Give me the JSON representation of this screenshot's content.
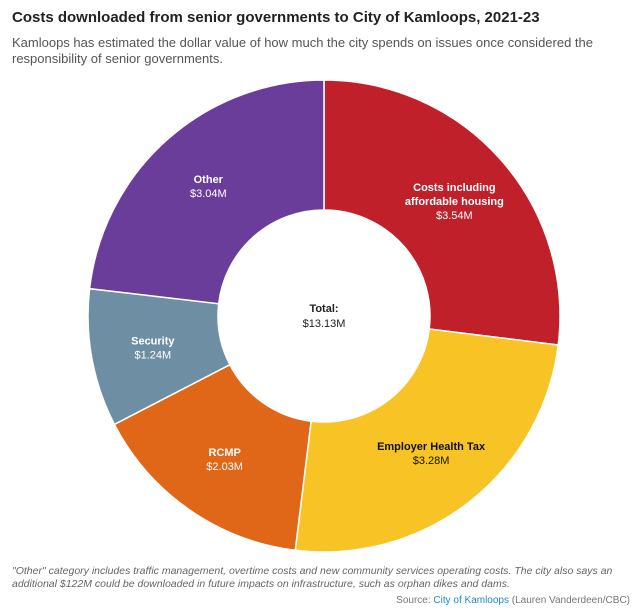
{
  "chart_data": {
    "type": "pie",
    "title": "Costs downloaded from senior governments to City of Kamloops, 2021-23",
    "subtitle": "Kamloops has estimated the dollar value of how much the city spends on issues once considered the responsibility of senior governments.",
    "center_label": {
      "title": "Total:",
      "value": "$13.13M"
    },
    "total": 13.13,
    "slices": [
      {
        "name": "Costs including affordable housing",
        "label_lines": [
          "Costs including",
          "affordable housing"
        ],
        "value": 3.54,
        "value_label": "$3.54M",
        "color": "#c0202a",
        "text_color": "#ffffff"
      },
      {
        "name": "Employer Health Tax",
        "label_lines": [
          "Employer Health Tax"
        ],
        "value": 3.28,
        "value_label": "$3.28M",
        "color": "#f7c325",
        "text_color": "#111111"
      },
      {
        "name": "RCMP",
        "label_lines": [
          "RCMP"
        ],
        "value": 2.03,
        "value_label": "$2.03M",
        "color": "#e06718",
        "text_color": "#ffffff"
      },
      {
        "name": "Security",
        "label_lines": [
          "Security"
        ],
        "value": 1.24,
        "value_label": "$1.24M",
        "color": "#6e8fa3",
        "text_color": "#ffffff"
      },
      {
        "name": "Other",
        "label_lines": [
          "Other"
        ],
        "value": 3.04,
        "value_label": "$3.04M",
        "color": "#6a3d9a",
        "text_color": "#ffffff"
      }
    ]
  },
  "footer": {
    "note": "\"Other\" category includes traffic management, overtime costs and new community services operating costs. The city also says an additional $122M could be downloaded in future impacts on infrastructure, such as orphan dikes and dams.",
    "source_prefix": "Source:",
    "source_link": "City of Kamloops",
    "source_credit": "(Lauren Vanderdeen/CBC)"
  }
}
